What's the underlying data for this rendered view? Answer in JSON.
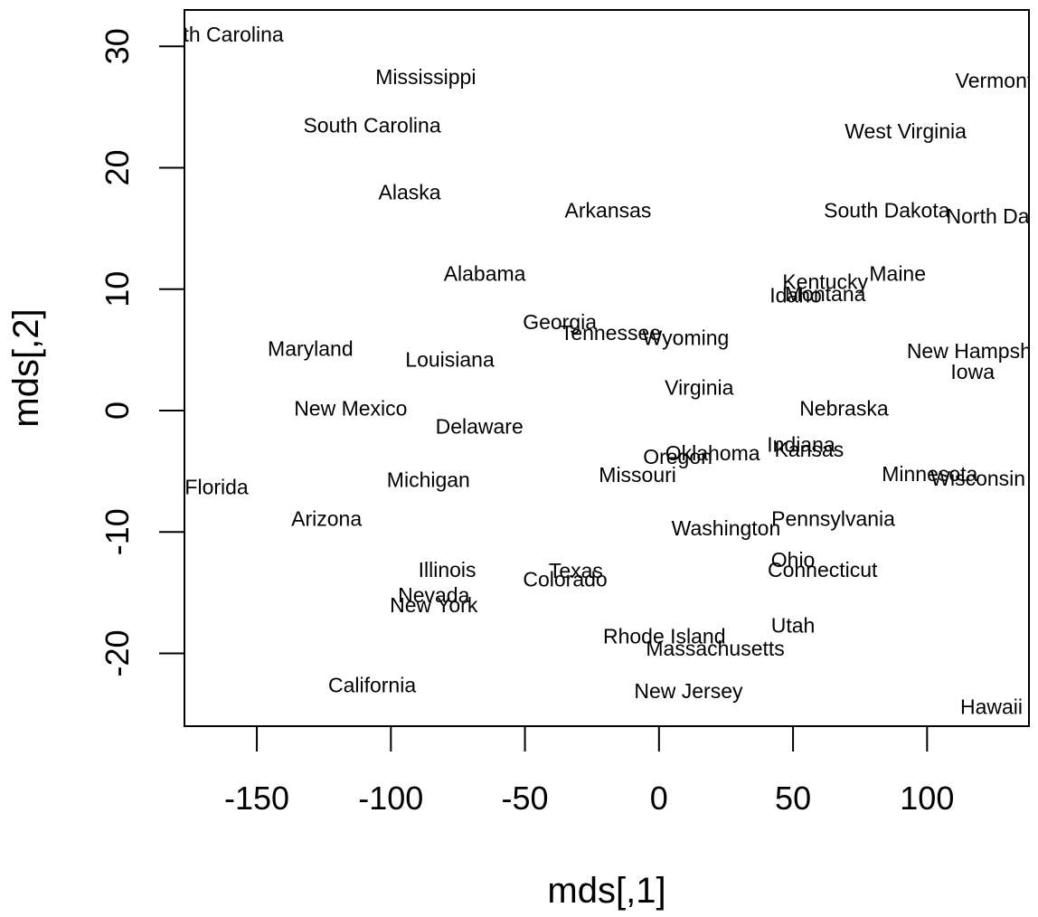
{
  "chart_data": {
    "type": "scatter",
    "title": "",
    "xlabel": "mds[,1]",
    "ylabel": "mds[,2]",
    "xlim": [
      -177,
      138
    ],
    "ylim": [
      -26,
      33
    ],
    "xticks": [
      -150,
      -100,
      -50,
      0,
      50,
      100
    ],
    "yticks": [
      -20,
      -10,
      0,
      10,
      20,
      30
    ],
    "xtick_labels": [
      "-150",
      "-100",
      "-50",
      "0",
      "50",
      "100"
    ],
    "ytick_labels": [
      "-20",
      "-10",
      "0",
      "10",
      "20",
      "30"
    ],
    "grid": false,
    "legend": "none",
    "points": [
      {
        "label": "North Carolina",
        "x": -165,
        "y": 31
      },
      {
        "label": "Mississippi",
        "x": -87,
        "y": 27.5
      },
      {
        "label": "South Carolina",
        "x": -107,
        "y": 23.5
      },
      {
        "label": "Alaska",
        "x": -93,
        "y": 18
      },
      {
        "label": "Arkansas",
        "x": -19,
        "y": 16.5
      },
      {
        "label": "Alabama",
        "x": -65,
        "y": 11.3
      },
      {
        "label": "Georgia",
        "x": -37,
        "y": 7.3
      },
      {
        "label": "Tennessee",
        "x": -18,
        "y": 6.4
      },
      {
        "label": "Wyoming",
        "x": 10,
        "y": 6
      },
      {
        "label": "Maryland",
        "x": -130,
        "y": 5.1
      },
      {
        "label": "Louisiana",
        "x": -78,
        "y": 4.2
      },
      {
        "label": "Virginia",
        "x": 15,
        "y": 1.9
      },
      {
        "label": "New Mexico",
        "x": -115,
        "y": 0.2
      },
      {
        "label": "Delaware",
        "x": -67,
        "y": -1.3
      },
      {
        "label": "Florida",
        "x": -165,
        "y": -6.3
      },
      {
        "label": "Michigan",
        "x": -86,
        "y": -5.7
      },
      {
        "label": "Missouri",
        "x": -8,
        "y": -5.3
      },
      {
        "label": "Oklahoma",
        "x": 20,
        "y": -3.5
      },
      {
        "label": "Oregon",
        "x": 7,
        "y": -3.8
      },
      {
        "label": "Arizona",
        "x": -124,
        "y": -8.9
      },
      {
        "label": "Washington",
        "x": 25,
        "y": -9.7
      },
      {
        "label": "Illinois",
        "x": -79,
        "y": -13.1
      },
      {
        "label": "Texas",
        "x": -31,
        "y": -13.2
      },
      {
        "label": "Colorado",
        "x": -35,
        "y": -13.9
      },
      {
        "label": "Nevada",
        "x": -84,
        "y": -15.2
      },
      {
        "label": "New York",
        "x": -84,
        "y": -16
      },
      {
        "label": "Rhode Island",
        "x": 2,
        "y": -18.6
      },
      {
        "label": "Massachusetts",
        "x": 21,
        "y": -19.6
      },
      {
        "label": "California",
        "x": -107,
        "y": -22.6
      },
      {
        "label": "New Jersey",
        "x": 11,
        "y": -23.1
      },
      {
        "label": "Vermont",
        "x": 125,
        "y": 27.2
      },
      {
        "label": "West Virginia",
        "x": 92,
        "y": 23
      },
      {
        "label": "South Dakota",
        "x": 85,
        "y": 16.5
      },
      {
        "label": "North Dakota",
        "x": 130,
        "y": 16
      },
      {
        "label": "Kentucky",
        "x": 62,
        "y": 10.6
      },
      {
        "label": "Maine",
        "x": 89,
        "y": 11.3
      },
      {
        "label": "Idaho",
        "x": 51,
        "y": 9.5
      },
      {
        "label": "Montana",
        "x": 62,
        "y": 9.6
      },
      {
        "label": "New Hampshire",
        "x": 120,
        "y": 4.9
      },
      {
        "label": "Iowa",
        "x": 117,
        "y": 3.2
      },
      {
        "label": "Nebraska",
        "x": 69,
        "y": 0.2
      },
      {
        "label": "Indiana",
        "x": 53,
        "y": -2.8
      },
      {
        "label": "Kansas",
        "x": 56,
        "y": -3.2
      },
      {
        "label": "Minnesota",
        "x": 101,
        "y": -5.2
      },
      {
        "label": "Wisconsin",
        "x": 119,
        "y": -5.6
      },
      {
        "label": "Pennsylvania",
        "x": 65,
        "y": -8.9
      },
      {
        "label": "Ohio",
        "x": 50,
        "y": -12.3
      },
      {
        "label": "Connecticut",
        "x": 61,
        "y": -13.1
      },
      {
        "label": "Utah",
        "x": 50,
        "y": -17.7
      },
      {
        "label": "Hawaii",
        "x": 124,
        "y": -24.4
      }
    ]
  }
}
